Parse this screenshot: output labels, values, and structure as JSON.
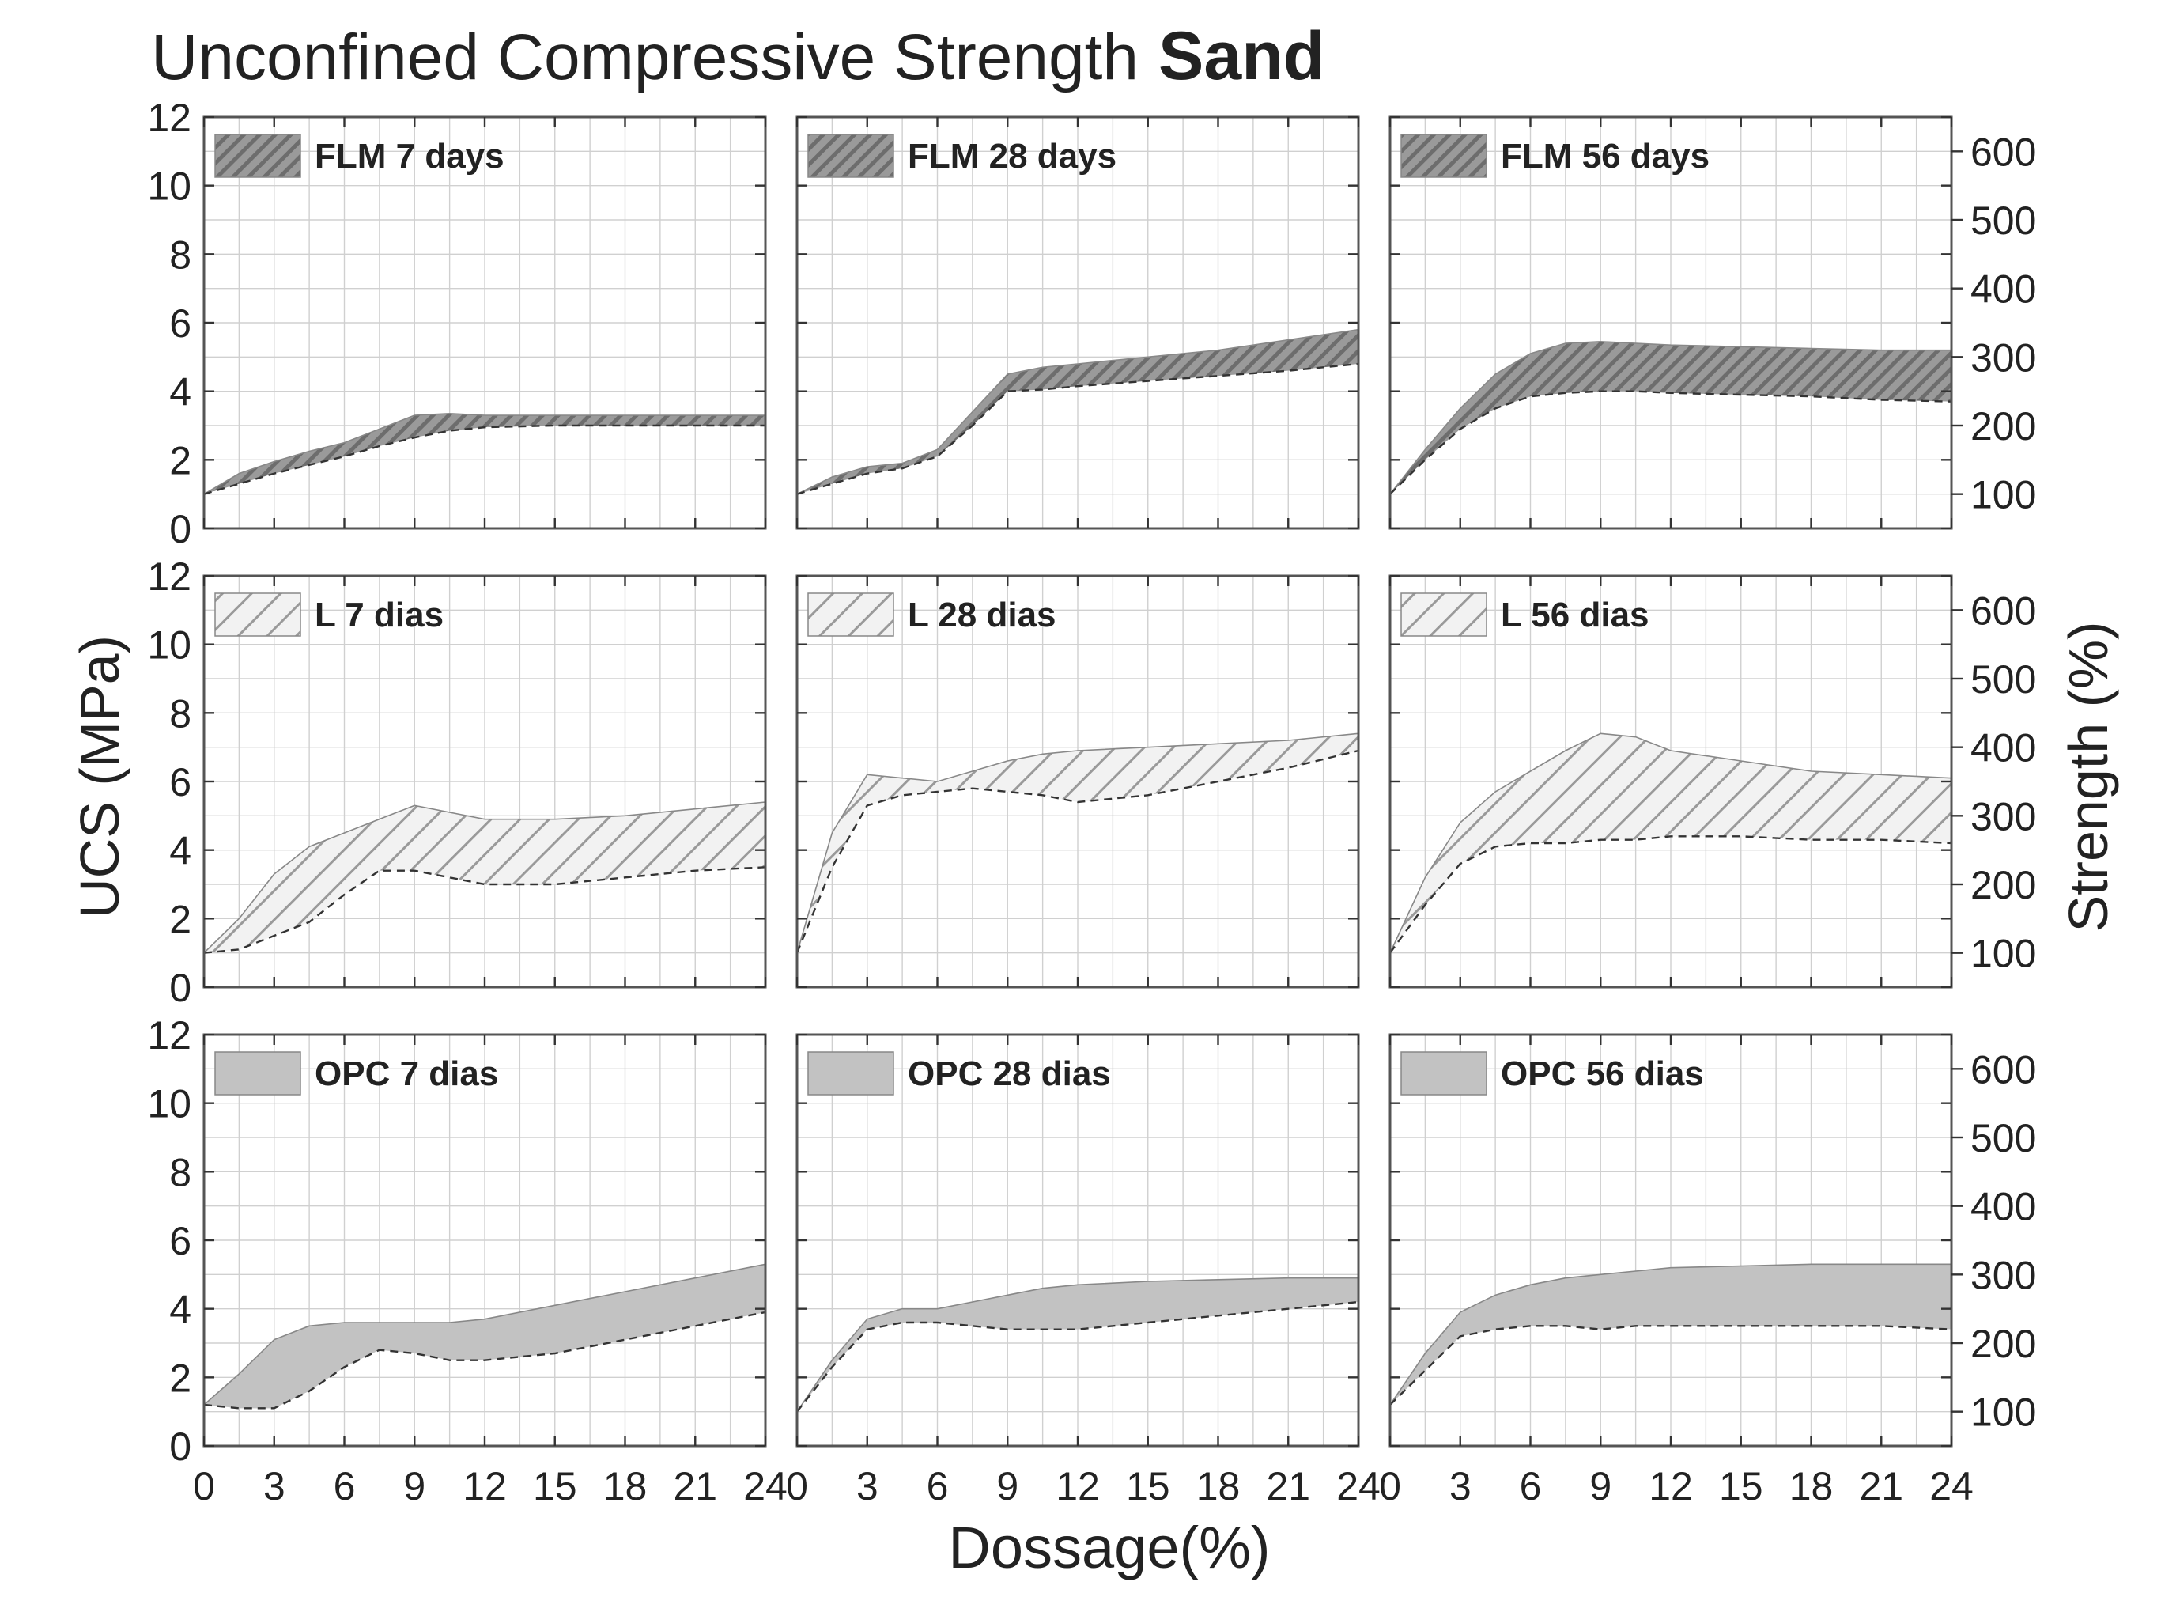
{
  "title": {
    "main": "Unconfined Compressive Strength",
    "bold": "Sand"
  },
  "chart_data": {
    "type": "area",
    "title": "Unconfined Compressive Strength Sand",
    "xlabel": "Dossage(%)",
    "ylabel": "UCS (MPa)",
    "y2label": "Strength (%)",
    "xlim": [
      0,
      24
    ],
    "ylim": [
      0,
      12
    ],
    "y2lim": [
      50,
      650
    ],
    "xticks": [
      0,
      3,
      6,
      9,
      12,
      15,
      18,
      21,
      24
    ],
    "yticks": [
      0,
      2,
      4,
      6,
      8,
      10,
      12
    ],
    "y2ticks": [
      100,
      200,
      300,
      400,
      500,
      600
    ],
    "grid": true,
    "legend_position": "top-left",
    "panels": [
      {
        "label": "FLM 7 days",
        "style": "dark-hatch",
        "x": [
          0,
          1.5,
          3,
          4.5,
          6,
          7.5,
          9,
          10.5,
          12,
          15,
          18,
          21,
          24
        ],
        "upper": [
          1.0,
          1.6,
          1.95,
          2.25,
          2.5,
          2.9,
          3.3,
          3.35,
          3.3,
          3.3,
          3.3,
          3.3,
          3.3
        ],
        "lower": [
          1.0,
          1.3,
          1.6,
          1.85,
          2.1,
          2.4,
          2.65,
          2.85,
          2.95,
          3.0,
          3.0,
          3.0,
          3.0
        ]
      },
      {
        "label": "FLM 28 days",
        "style": "dark-hatch",
        "x": [
          0,
          1.5,
          3,
          4.5,
          6,
          7.5,
          9,
          10.5,
          12,
          15,
          18,
          21,
          24
        ],
        "upper": [
          1.0,
          1.5,
          1.8,
          1.9,
          2.3,
          3.4,
          4.5,
          4.7,
          4.8,
          5.0,
          5.2,
          5.5,
          5.8
        ],
        "lower": [
          1.0,
          1.3,
          1.6,
          1.75,
          2.1,
          3.0,
          4.0,
          4.05,
          4.15,
          4.3,
          4.45,
          4.6,
          4.8
        ]
      },
      {
        "label": "FLM 56 days",
        "style": "dark-hatch",
        "x": [
          0,
          1.5,
          3,
          4.5,
          6,
          7.5,
          9,
          10.5,
          12,
          15,
          18,
          21,
          24
        ],
        "upper": [
          1.0,
          2.3,
          3.5,
          4.5,
          5.1,
          5.4,
          5.45,
          5.4,
          5.35,
          5.3,
          5.25,
          5.2,
          5.2
        ],
        "lower": [
          1.0,
          2.0,
          2.9,
          3.5,
          3.85,
          3.95,
          4.0,
          4.0,
          3.95,
          3.9,
          3.85,
          3.75,
          3.7
        ]
      },
      {
        "label": "L 7 dias",
        "style": "light-hatch",
        "x": [
          0,
          1.5,
          3,
          4.5,
          6,
          7.5,
          9,
          10.5,
          12,
          15,
          18,
          21,
          24
        ],
        "upper": [
          1.0,
          2.0,
          3.3,
          4.1,
          4.5,
          4.9,
          5.3,
          5.1,
          4.9,
          4.9,
          5.0,
          5.2,
          5.4
        ],
        "lower": [
          1.0,
          1.1,
          1.5,
          1.9,
          2.7,
          3.4,
          3.4,
          3.2,
          3.0,
          3.0,
          3.2,
          3.4,
          3.5
        ]
      },
      {
        "label": "L 28 dias",
        "style": "light-hatch",
        "x": [
          0,
          1.5,
          3,
          4.5,
          6,
          7.5,
          9,
          10.5,
          12,
          15,
          18,
          21,
          24
        ],
        "upper": [
          1.0,
          4.5,
          6.2,
          6.1,
          6.0,
          6.3,
          6.6,
          6.8,
          6.9,
          7.0,
          7.1,
          7.2,
          7.4
        ],
        "lower": [
          1.0,
          3.5,
          5.3,
          5.6,
          5.7,
          5.8,
          5.7,
          5.6,
          5.4,
          5.6,
          6.0,
          6.4,
          6.9
        ]
      },
      {
        "label": "L 56 dias",
        "style": "light-hatch",
        "x": [
          0,
          1.5,
          3,
          4.5,
          6,
          7.5,
          9,
          10.5,
          12,
          15,
          18,
          21,
          24
        ],
        "upper": [
          1.0,
          3.2,
          4.8,
          5.7,
          6.3,
          6.9,
          7.4,
          7.3,
          6.9,
          6.6,
          6.3,
          6.2,
          6.1
        ],
        "lower": [
          1.0,
          2.4,
          3.6,
          4.1,
          4.2,
          4.2,
          4.3,
          4.3,
          4.4,
          4.4,
          4.3,
          4.3,
          4.2
        ]
      },
      {
        "label": "OPC 7 dias",
        "style": "solid-gray",
        "x": [
          0,
          1.5,
          3,
          4.5,
          6,
          7.5,
          9,
          10.5,
          12,
          15,
          18,
          21,
          24
        ],
        "upper": [
          1.2,
          2.1,
          3.1,
          3.5,
          3.6,
          3.6,
          3.6,
          3.6,
          3.7,
          4.1,
          4.5,
          4.9,
          5.3
        ],
        "lower": [
          1.2,
          1.1,
          1.1,
          1.6,
          2.3,
          2.8,
          2.7,
          2.5,
          2.5,
          2.7,
          3.1,
          3.5,
          3.9
        ]
      },
      {
        "label": "OPC 28 dias",
        "style": "solid-gray",
        "x": [
          0,
          1.5,
          3,
          4.5,
          6,
          7.5,
          9,
          10.5,
          12,
          15,
          18,
          21,
          24
        ],
        "upper": [
          1.0,
          2.5,
          3.7,
          4.0,
          4.0,
          4.2,
          4.4,
          4.6,
          4.7,
          4.8,
          4.85,
          4.9,
          4.9
        ],
        "lower": [
          1.0,
          2.3,
          3.4,
          3.6,
          3.6,
          3.5,
          3.4,
          3.4,
          3.4,
          3.6,
          3.8,
          4.0,
          4.2
        ]
      },
      {
        "label": "OPC 56 dias",
        "style": "solid-gray",
        "x": [
          0,
          1.5,
          3,
          4.5,
          6,
          7.5,
          9,
          10.5,
          12,
          15,
          18,
          21,
          24
        ],
        "upper": [
          1.2,
          2.7,
          3.9,
          4.4,
          4.7,
          4.9,
          5.0,
          5.1,
          5.2,
          5.25,
          5.3,
          5.3,
          5.3
        ],
        "lower": [
          1.2,
          2.2,
          3.2,
          3.4,
          3.5,
          3.5,
          3.4,
          3.5,
          3.5,
          3.5,
          3.5,
          3.5,
          3.4
        ]
      }
    ]
  }
}
